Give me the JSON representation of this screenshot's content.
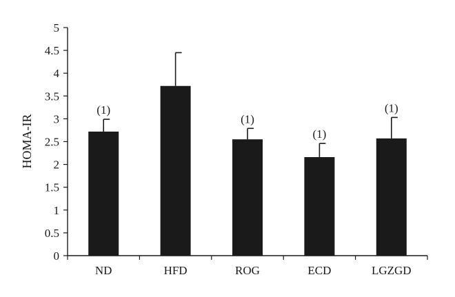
{
  "chart_data": {
    "type": "bar",
    "title": "",
    "xlabel": "",
    "ylabel": "HOMA-IR",
    "ylim": [
      0,
      5
    ],
    "y_ticks": [
      "0",
      "0.5",
      "1",
      "1.5",
      "2",
      "2.5",
      "3",
      "3.5",
      "4",
      "4.5",
      "5"
    ],
    "grid": false,
    "categories": [
      "ND",
      "HFD",
      "ROG",
      "ECD",
      "LGZGD"
    ],
    "series": [
      {
        "values": [
          2.72,
          3.72,
          2.55,
          2.16,
          2.57
        ],
        "error_upper": [
          0.27,
          0.73,
          0.24,
          0.3,
          0.46
        ],
        "annotations": [
          "(1)",
          "",
          "(1)",
          "(1)",
          "(1)"
        ],
        "color": "#1a1a1a"
      }
    ]
  }
}
